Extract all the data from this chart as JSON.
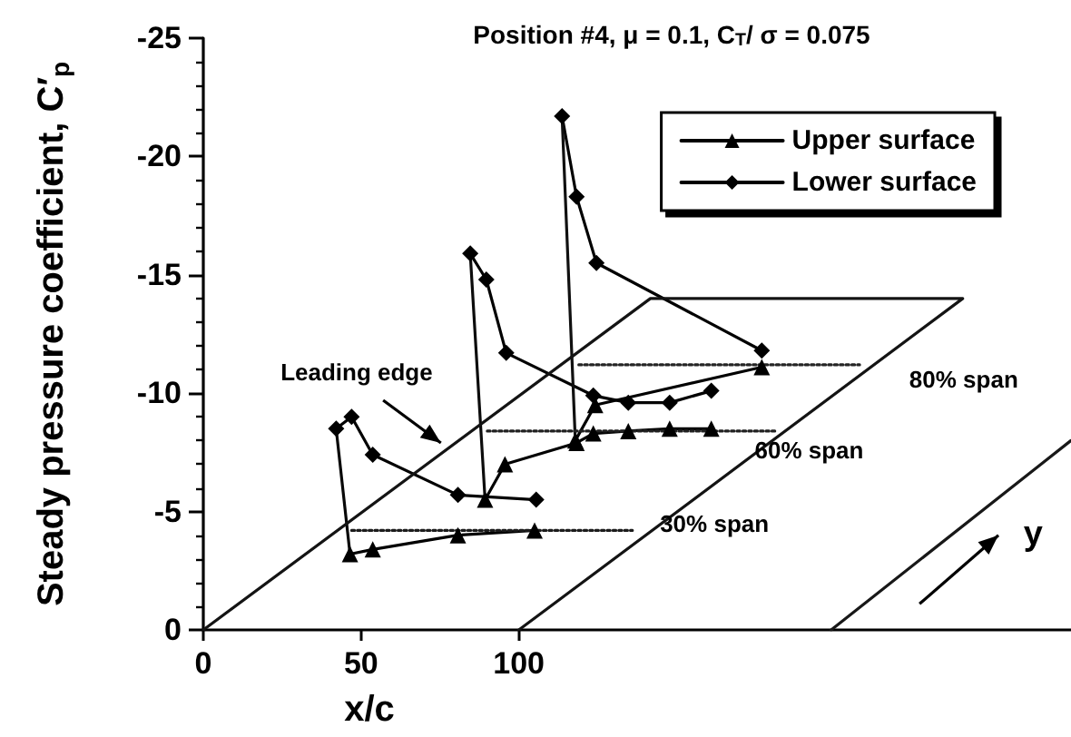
{
  "chart_data": {
    "type": "line",
    "title": "Position #4, μ = 0.1, C$_{T}$/ σ = 0.075",
    "xlabel": "x/c",
    "ylabel": "Steady pressure coefficient, C′$_{p}$",
    "xlim": [
      0,
      275
    ],
    "ylim": [
      0,
      -25
    ],
    "xticks": [
      0,
      50,
      100
    ],
    "yticks": [
      0,
      -5,
      -10,
      -15,
      -20,
      -25
    ],
    "grid": false,
    "legend": "top right",
    "series": [
      {
        "name": "Upper surface",
        "color": "#000000",
        "marker": "triangle",
        "x": [
          46.5,
          53.7,
          80.7,
          105,
          null,
          89.3,
          95.6,
          118.3,
          123.6,
          134.7,
          147.8,
          161,
          null,
          117.9,
          124.2,
          177
        ],
        "values": [
          -3.2,
          -3.4,
          -4.0,
          -4.2,
          null,
          -5.5,
          -7.0,
          -7.9,
          -8.3,
          -8.4,
          -8.5,
          -8.5,
          null,
          -8.0,
          -9.5,
          -11.1
        ]
      },
      {
        "name": "Lower surface",
        "color": "#000000",
        "marker": "diamond",
        "x": [
          42.1,
          47,
          53.7,
          80.7,
          105.5,
          null,
          84.6,
          89.7,
          96,
          123.6,
          134.7,
          147.8,
          161,
          null,
          113.7,
          118.3,
          124.6,
          177
        ],
        "values": [
          -8.5,
          -9.0,
          -7.4,
          -5.7,
          -5.5,
          null,
          -15.9,
          -14.8,
          -11.7,
          -9.9,
          -9.6,
          -9.6,
          -10.1,
          null,
          -21.7,
          -18.3,
          -15.5,
          -11.8
        ]
      },
      {
        "color": "#080808",
        "marker": "none",
        "x": [
          42.1,
          46.5
        ],
        "values": [
          -8.5,
          -3.2
        ]
      },
      {
        "color": "#0c0c0c",
        "marker": "none",
        "x": [
          84.6,
          89.3
        ],
        "values": [
          -15.9,
          -5.5
        ]
      },
      {
        "color": "#101010",
        "marker": "none",
        "x": [
          113.7,
          117.9
        ],
        "values": [
          -21.7,
          -8.0
        ]
      },
      {
        "color": "#141414",
        "marker": "none",
        "x": [
          0,
          141.7,
          240.7,
          100
        ],
        "values": [
          0,
          -14,
          -14,
          0
        ]
      },
      {
        "color": "#181818",
        "marker": "none",
        "x": [
          199,
          275
        ],
        "values": [
          0,
          -8
        ]
      },
      {
        "color": "#1c1c1c",
        "marker": "none",
        "line_style": "dotted",
        "x": [
          47,
          136
        ],
        "values": [
          -4.2,
          -4.2
        ]
      },
      {
        "color": "#202020",
        "marker": "none",
        "line_style": "dotted",
        "x": [
          90,
          182
        ],
        "values": [
          -8.4,
          -8.4
        ]
      },
      {
        "color": "#242424",
        "marker": "none",
        "line_style": "dotted",
        "x": [
          119,
          208
        ],
        "values": [
          -11.2,
          -11.2
        ]
      }
    ],
    "annotations": [
      "30% span",
      "60% span",
      "80% span",
      "Leading edge",
      "y"
    ]
  }
}
